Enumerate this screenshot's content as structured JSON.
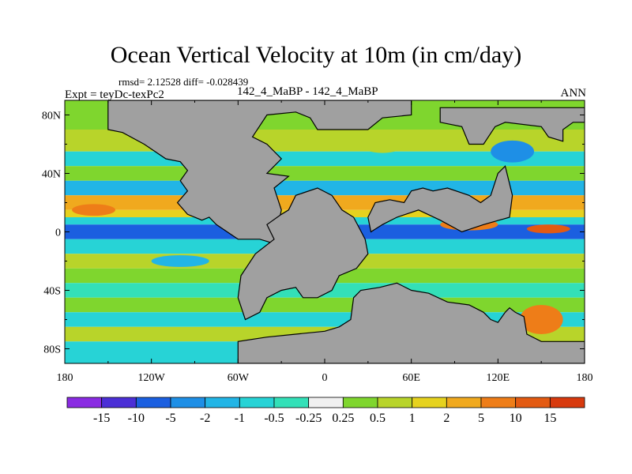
{
  "chart_data": {
    "type": "heatmap",
    "title": "Ocean Vertical Velocity at 10m (in cm/day)",
    "stats": "rmsd= 2.12528 diff= -0.028439",
    "left_label": "Expt = teyDc-texPc2",
    "center_label": "142_4_MaBP - 142_4_MaBP",
    "right_label": "ANN",
    "x_ticks": [
      "180",
      "120W",
      "60W",
      "0",
      "60E",
      "120E",
      "180"
    ],
    "x_tick_values": [
      -180,
      -120,
      -60,
      0,
      60,
      120,
      180
    ],
    "y_ticks": [
      "80N",
      "40N",
      "0",
      "40S",
      "80S"
    ],
    "y_tick_values": [
      80,
      40,
      0,
      -40,
      -80
    ],
    "xlim": [
      -180,
      180
    ],
    "ylim": [
      -90,
      90
    ],
    "colorbar": {
      "labels": [
        "-15",
        "-10",
        "-5",
        "-2",
        "-1",
        "-0.5",
        "-0.25",
        "0.25",
        "0.5",
        "1",
        "2",
        "5",
        "10",
        "15"
      ],
      "colors": [
        "#8a2be2",
        "#4b2fd6",
        "#1b5fe0",
        "#1e8fe6",
        "#22b5e6",
        "#27d3d6",
        "#33e0b8",
        "#f0f0f0",
        "#7fd62e",
        "#b8d42a",
        "#e6d21e",
        "#f0a91e",
        "#ee7d18",
        "#e35a12",
        "#d83a0e"
      ]
    },
    "land_color": "#a0a0a0",
    "bands": [
      {
        "lat_from": 90,
        "lat_to": 70,
        "level": "0.25"
      },
      {
        "lat_from": 70,
        "lat_to": 55,
        "level": "0.5"
      },
      {
        "lat_from": 55,
        "lat_to": 45,
        "level": "-0.5"
      },
      {
        "lat_from": 45,
        "lat_to": 35,
        "level": "0.25"
      },
      {
        "lat_from": 35,
        "lat_to": 25,
        "level": "-1"
      },
      {
        "lat_from": 25,
        "lat_to": 15,
        "level": "2"
      },
      {
        "lat_from": 15,
        "lat_to": 10,
        "level": "1"
      },
      {
        "lat_from": 10,
        "lat_to": 5,
        "level": "-0.5"
      },
      {
        "lat_from": 5,
        "lat_to": -5,
        "level": "-5"
      },
      {
        "lat_from": -5,
        "lat_to": -15,
        "level": "-0.5"
      },
      {
        "lat_from": -15,
        "lat_to": -25,
        "level": "0.5"
      },
      {
        "lat_from": -25,
        "lat_to": -35,
        "level": "0.25"
      },
      {
        "lat_from": -35,
        "lat_to": -45,
        "level": "-0.25"
      },
      {
        "lat_from": -45,
        "lat_to": -55,
        "level": "0.25"
      },
      {
        "lat_from": -55,
        "lat_to": -65,
        "level": "-0.5"
      },
      {
        "lat_from": -65,
        "lat_to": -75,
        "level": "0.5"
      },
      {
        "lat_from": -75,
        "lat_to": -90,
        "level": "-0.5"
      }
    ],
    "patches": [
      {
        "lon": 155,
        "lat": 2,
        "w": 30,
        "h": 6,
        "level": "10"
      },
      {
        "lon": 100,
        "lat": 5,
        "w": 40,
        "h": 8,
        "level": "5"
      },
      {
        "lon": 60,
        "lat": 20,
        "w": 30,
        "h": 10,
        "level": "2"
      },
      {
        "lon": -160,
        "lat": 15,
        "w": 30,
        "h": 8,
        "level": "5"
      },
      {
        "lon": 150,
        "lat": -60,
        "w": 30,
        "h": 20,
        "level": "5"
      },
      {
        "lon": 130,
        "lat": 55,
        "w": 30,
        "h": 15,
        "level": "-2"
      },
      {
        "lon": -100,
        "lat": -20,
        "w": 40,
        "h": 8,
        "level": "-1"
      },
      {
        "lon": 40,
        "lat": 60,
        "w": 30,
        "h": 12,
        "level": "0.5"
      }
    ],
    "land": [
      {
        "name": "north-polar-land",
        "poly": [
          [
            -150,
            90
          ],
          [
            -150,
            70
          ],
          [
            -140,
            68
          ],
          [
            -125,
            60
          ],
          [
            -110,
            50
          ],
          [
            -100,
            48
          ],
          [
            -95,
            42
          ],
          [
            -100,
            35
          ],
          [
            -95,
            28
          ],
          [
            -102,
            20
          ],
          [
            -95,
            12
          ],
          [
            -85,
            8
          ],
          [
            -80,
            10
          ],
          [
            -75,
            5
          ],
          [
            -60,
            -5
          ],
          [
            -45,
            -5
          ],
          [
            -35,
            -8
          ],
          [
            -30,
            15
          ],
          [
            -35,
            30
          ],
          [
            -25,
            38
          ],
          [
            -40,
            40
          ],
          [
            -30,
            50
          ],
          [
            -40,
            60
          ],
          [
            -50,
            65
          ],
          [
            -40,
            80
          ],
          [
            -20,
            82
          ],
          [
            -10,
            78
          ],
          [
            -5,
            70
          ],
          [
            30,
            70
          ],
          [
            40,
            78
          ],
          [
            60,
            80
          ],
          [
            60,
            90
          ]
        ]
      },
      {
        "name": "northeast-land",
        "poly": [
          [
            80,
            85
          ],
          [
            80,
            75
          ],
          [
            95,
            72
          ],
          [
            100,
            60
          ],
          [
            110,
            60
          ],
          [
            118,
            72
          ],
          [
            125,
            75
          ],
          [
            150,
            72
          ],
          [
            155,
            65
          ],
          [
            165,
            62
          ],
          [
            165,
            70
          ],
          [
            172,
            75
          ],
          [
            180,
            75
          ],
          [
            180,
            85
          ]
        ]
      },
      {
        "name": "western-central-land",
        "poly": [
          [
            -25,
            15
          ],
          [
            -20,
            25
          ],
          [
            -5,
            30
          ],
          [
            5,
            25
          ],
          [
            12,
            15
          ],
          [
            20,
            10
          ],
          [
            28,
            -5
          ],
          [
            30,
            -15
          ],
          [
            22,
            -25
          ],
          [
            10,
            -30
          ],
          [
            5,
            -40
          ],
          [
            -5,
            -45
          ],
          [
            -15,
            -45
          ],
          [
            -20,
            -38
          ],
          [
            -30,
            -40
          ],
          [
            -40,
            -45
          ],
          [
            -45,
            -55
          ],
          [
            -55,
            -60
          ],
          [
            -60,
            -45
          ],
          [
            -58,
            -30
          ],
          [
            -48,
            -15
          ],
          [
            -35,
            -5
          ],
          [
            -40,
            5
          ],
          [
            -30,
            12
          ]
        ]
      },
      {
        "name": "eastern-land",
        "poly": [
          [
            30,
            10
          ],
          [
            35,
            20
          ],
          [
            45,
            22
          ],
          [
            55,
            20
          ],
          [
            60,
            28
          ],
          [
            68,
            30
          ],
          [
            75,
            28
          ],
          [
            85,
            30
          ],
          [
            100,
            25
          ],
          [
            108,
            20
          ],
          [
            115,
            25
          ],
          [
            120,
            40
          ],
          [
            125,
            45
          ],
          [
            130,
            25
          ],
          [
            128,
            10
          ],
          [
            110,
            5
          ],
          [
            95,
            0
          ],
          [
            80,
            8
          ],
          [
            65,
            15
          ],
          [
            50,
            10
          ],
          [
            40,
            5
          ],
          [
            32,
            0
          ]
        ]
      },
      {
        "name": "southern-land",
        "poly": [
          [
            18,
            -60
          ],
          [
            20,
            -45
          ],
          [
            25,
            -40
          ],
          [
            38,
            -38
          ],
          [
            50,
            -35
          ],
          [
            60,
            -40
          ],
          [
            72,
            -42
          ],
          [
            85,
            -48
          ],
          [
            100,
            -50
          ],
          [
            110,
            -55
          ],
          [
            115,
            -60
          ],
          [
            120,
            -62
          ],
          [
            125,
            -55
          ],
          [
            128,
            -52
          ],
          [
            132,
            -55
          ],
          [
            138,
            -58
          ],
          [
            140,
            -70
          ],
          [
            150,
            -75
          ],
          [
            180,
            -75
          ],
          [
            180,
            -90
          ],
          [
            -60,
            -90
          ],
          [
            -60,
            -75
          ],
          [
            -40,
            -72
          ],
          [
            -20,
            -70
          ],
          [
            0,
            -68
          ],
          [
            10,
            -65
          ]
        ]
      }
    ]
  }
}
